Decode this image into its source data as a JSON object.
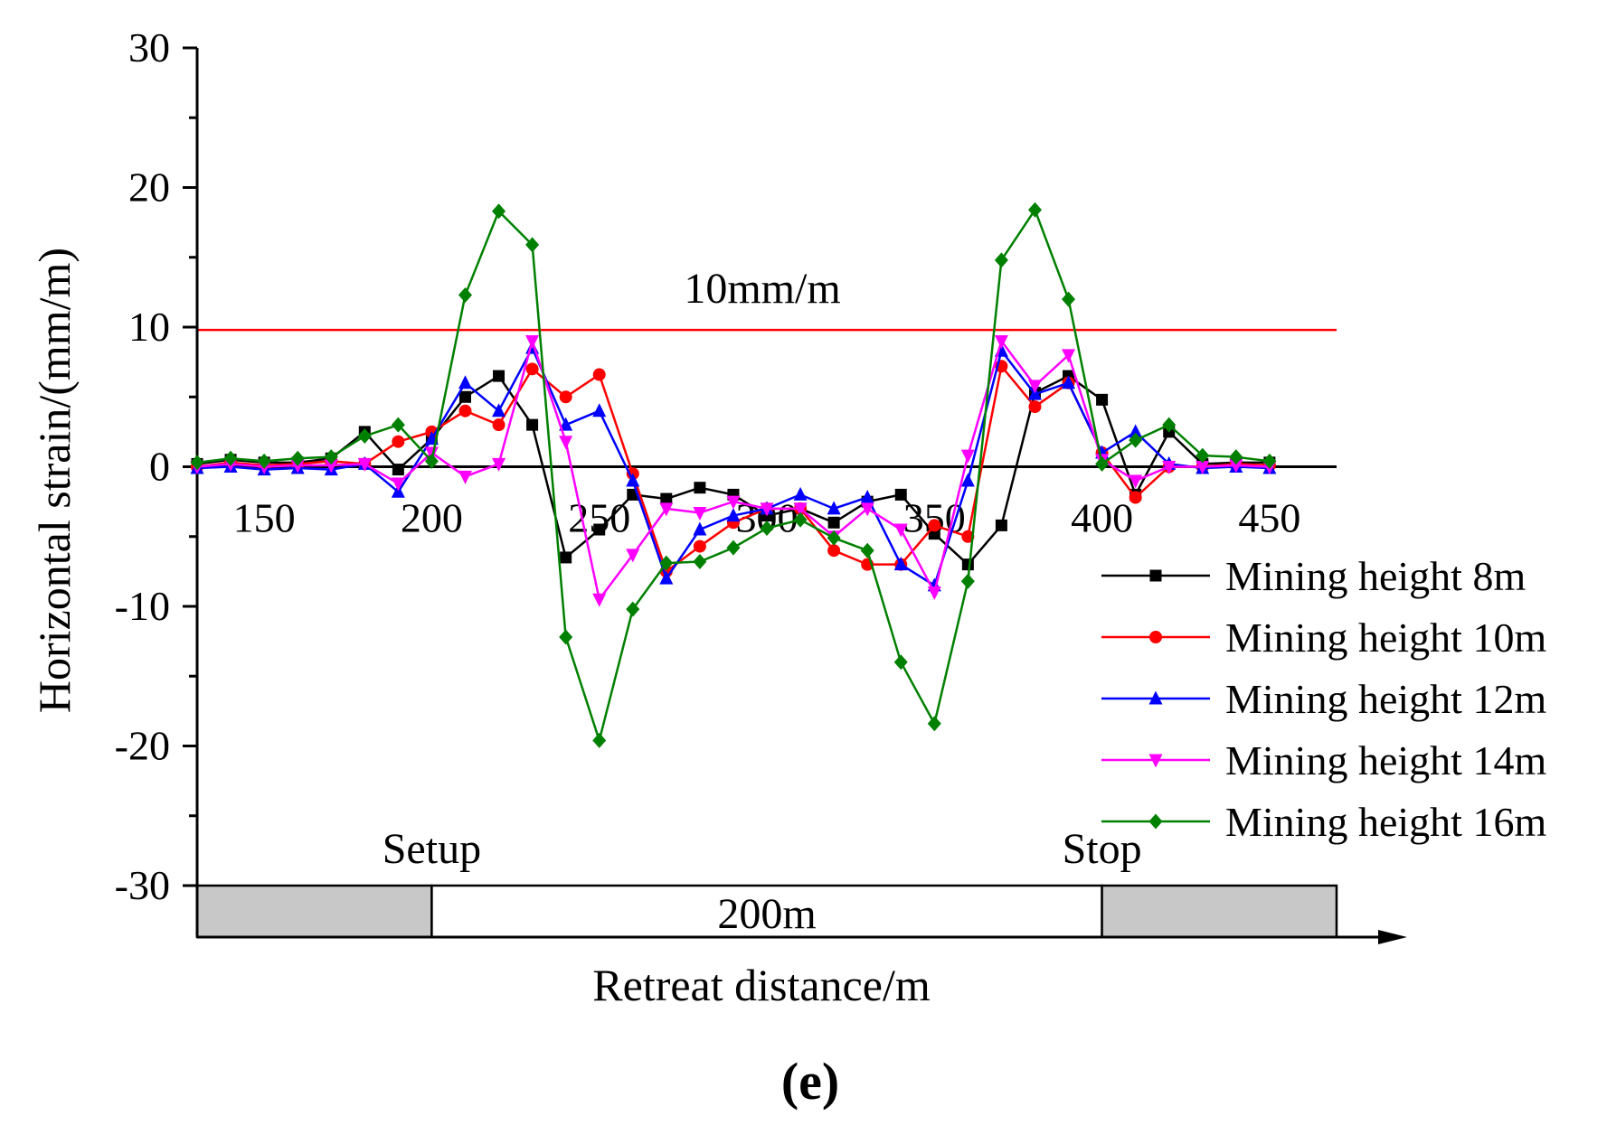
{
  "chart_data": {
    "type": "line",
    "xlabel": "Retreat distance/m",
    "ylabel": "Horizontal strain/(mm/m)",
    "xlim": [
      130,
      470
    ],
    "ylim": [
      -30,
      30
    ],
    "x_ticks": [
      150,
      200,
      250,
      300,
      350,
      400,
      450
    ],
    "y_ticks": [
      30,
      20,
      10,
      0,
      -10,
      -20,
      -30
    ],
    "x": [
      130,
      140,
      150,
      160,
      170,
      180,
      190,
      200,
      210,
      220,
      230,
      240,
      250,
      260,
      270,
      280,
      290,
      300,
      310,
      320,
      330,
      340,
      350,
      360,
      370,
      380,
      390,
      400,
      410,
      420,
      430,
      440,
      450
    ],
    "series": [
      {
        "name": "Mining height 8m",
        "color": "#000000",
        "marker": "square",
        "values": [
          0.2,
          0.5,
          0.3,
          0.3,
          0.6,
          2.5,
          -0.2,
          2.0,
          5.0,
          6.5,
          3.0,
          -6.5,
          -4.5,
          -2.0,
          -2.3,
          -1.5,
          -2.0,
          -3.5,
          -3.0,
          -4.0,
          -2.5,
          -2.0,
          -4.8,
          -7.0,
          -4.2,
          5.3,
          6.5,
          4.8,
          -2.0,
          2.5,
          0.2,
          0.3,
          0.3
        ]
      },
      {
        "name": "Mining height 10m",
        "color": "#ff0000",
        "marker": "circle",
        "values": [
          0.0,
          0.3,
          0.1,
          0.2,
          0.4,
          0.2,
          1.8,
          2.5,
          4.0,
          3.0,
          7.0,
          5.0,
          6.6,
          -0.5,
          -7.5,
          -5.7,
          -4.0,
          -3.0,
          -3.0,
          -6.0,
          -7.0,
          -7.0,
          -4.2,
          -5.0,
          7.2,
          4.3,
          6.0,
          1.0,
          -2.2,
          0.0,
          0.0,
          0.2,
          0.1
        ]
      },
      {
        "name": "Mining height 12m",
        "color": "#0000ff",
        "marker": "triangle-up",
        "values": [
          -0.1,
          0.0,
          -0.2,
          -0.1,
          -0.2,
          0.2,
          -1.8,
          2.0,
          6.0,
          4.0,
          8.5,
          3.0,
          4.0,
          -1.0,
          -8.0,
          -4.5,
          -3.5,
          -3.0,
          -2.0,
          -3.0,
          -2.2,
          -7.0,
          -8.5,
          -1.0,
          8.3,
          5.2,
          6.0,
          1.0,
          2.5,
          0.2,
          -0.1,
          0.0,
          -0.1
        ]
      },
      {
        "name": "Mining height 14m",
        "color": "#ff00ff",
        "marker": "triangle-down",
        "values": [
          0.0,
          0.2,
          0.0,
          0.1,
          0.1,
          0.2,
          -1.2,
          1.0,
          -0.7,
          0.2,
          9.0,
          1.8,
          -9.5,
          -6.3,
          -3.0,
          -3.3,
          -2.5,
          -3.0,
          -3.0,
          -5.0,
          -3.0,
          -4.5,
          -9.0,
          0.8,
          9.0,
          5.8,
          8.0,
          0.5,
          -1.0,
          0.0,
          0.0,
          0.1,
          0.0
        ]
      },
      {
        "name": "Mining height 16m",
        "color": "#008000",
        "marker": "diamond",
        "values": [
          0.3,
          0.6,
          0.4,
          0.6,
          0.7,
          2.2,
          3.0,
          0.4,
          12.3,
          18.3,
          15.9,
          -12.2,
          -19.6,
          -10.2,
          -6.9,
          -6.8,
          -5.8,
          -4.4,
          -3.8,
          -5.1,
          -6.0,
          -14.0,
          -18.4,
          -8.2,
          14.8,
          18.4,
          12.0,
          0.2,
          1.9,
          3.0,
          0.8,
          0.7,
          0.4
        ]
      }
    ],
    "reference_line": {
      "value": 9.8,
      "label": "10mm/m",
      "color": "#ff0000"
    },
    "zero_line_color": "#000000",
    "panel_bar": {
      "range": [
        130,
        470
      ],
      "setup_x": 200,
      "stop_x": 400,
      "setup_label": "Setup",
      "stop_label": "Stop",
      "span_label": "200m",
      "fill_color": "#c8c8c8"
    },
    "panel_label": "(e)",
    "legend_position": "bottom-right",
    "grid": false
  }
}
